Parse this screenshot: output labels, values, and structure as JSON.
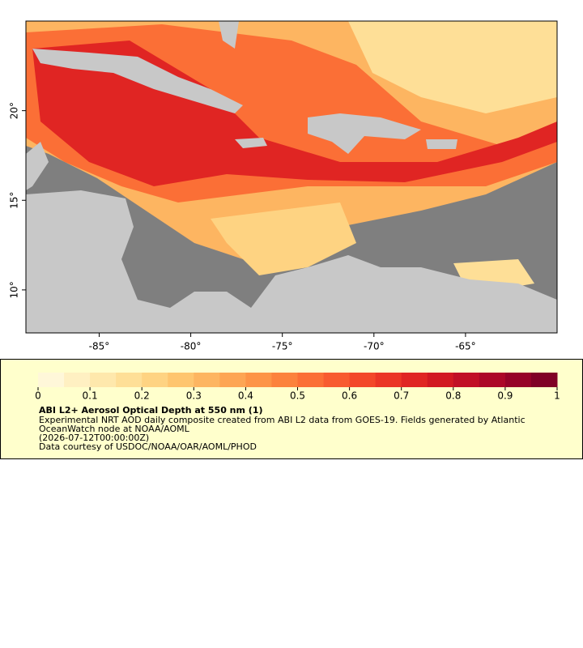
{
  "map": {
    "xlim": [
      -89,
      -60
    ],
    "ylim": [
      7.6,
      25
    ],
    "xticks": [
      {
        "value": -85,
        "label": "-85°"
      },
      {
        "value": -80,
        "label": "-80°"
      },
      {
        "value": -75,
        "label": "-75°"
      },
      {
        "value": -70,
        "label": "-70°"
      },
      {
        "value": -65,
        "label": "-65°"
      }
    ],
    "yticks": [
      {
        "value": 10,
        "label": "10°"
      },
      {
        "value": 15,
        "label": "15°"
      },
      {
        "value": 20,
        "label": "20°"
      }
    ],
    "colorbar": {
      "range": [
        0,
        1
      ],
      "ticks": [
        0,
        0.1,
        0.2,
        0.3,
        0.4,
        0.5,
        0.6,
        0.7,
        0.8,
        0.9,
        1
      ],
      "colors": [
        "#fff7d9",
        "#fff0c2",
        "#fee8ac",
        "#fedf97",
        "#fed382",
        "#fec56f",
        "#fdb561",
        "#fda554",
        "#fd9447",
        "#fc823d",
        "#fb6f36",
        "#f85b30",
        "#f3472a",
        "#eb3526",
        "#e02523",
        "#d21822",
        "#c10f26",
        "#ac0728",
        "#960228",
        "#800026"
      ]
    },
    "title": "ABI L2+ Aerosol Optical Depth at 550 nm (1)",
    "description": [
      "Experimental NRT AOD daily composite created from ABI L2 data from GOES-19. Fields generated by Atlantic",
      "OceanWatch node at NOAA/AOML",
      "(2026-07-12T00:00:00Z)",
      "Data courtesy of USDOC/NOAA/OAR/AOML/PHOD"
    ]
  }
}
